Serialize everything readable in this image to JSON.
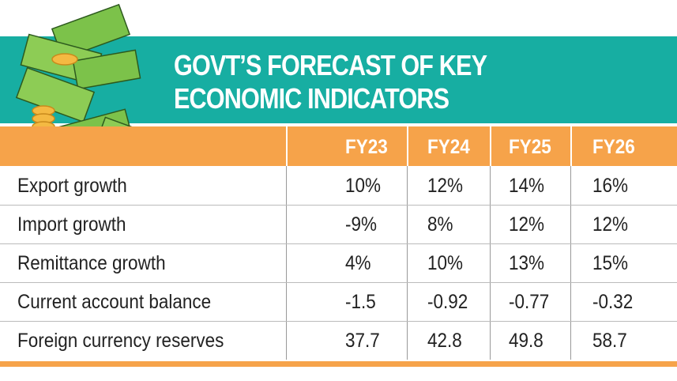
{
  "header": {
    "title_lines": [
      "GOVT’S FORECAST OF KEY",
      "ECONOMIC INDICATORS"
    ]
  },
  "table": {
    "columns": [
      "FY23",
      "FY24",
      "FY25",
      "FY26"
    ],
    "rows": [
      {
        "label": "Export growth",
        "values": [
          "10%",
          "12%",
          "14%",
          "16%"
        ]
      },
      {
        "label": "Import growth",
        "values": [
          "-9%",
          "8%",
          "12%",
          "12%"
        ]
      },
      {
        "label": "Remittance growth",
        "values": [
          "4%",
          "10%",
          "13%",
          "15%"
        ]
      },
      {
        "label": "Current account balance",
        "values": [
          "-1.5",
          "-0.92",
          "-0.77",
          "-0.32"
        ]
      },
      {
        "label": "Foreign currency reserves",
        "values": [
          "37.7",
          "42.8",
          "49.8",
          "58.7"
        ]
      }
    ]
  }
}
